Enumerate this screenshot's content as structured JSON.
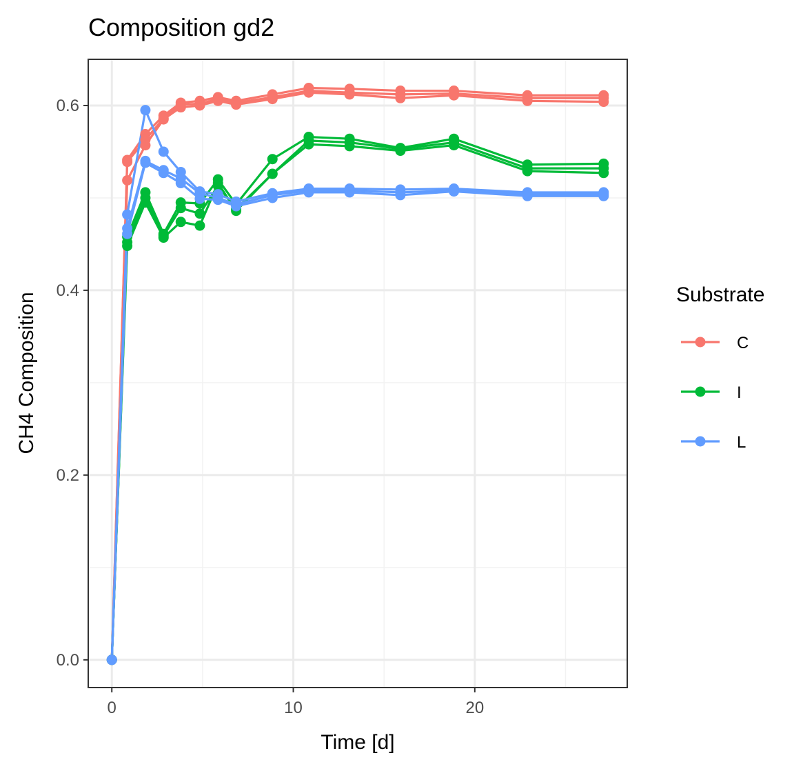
{
  "chart_data": {
    "type": "line",
    "title": "Composition gd2",
    "xlabel": "Time [d]",
    "ylabel": "CH4 Composition",
    "xlim": [
      -1.3,
      28.4
    ],
    "ylim": [
      -0.03,
      0.65
    ],
    "x_ticks": [
      0,
      10,
      20
    ],
    "x_tick_labels": [
      "0",
      "10",
      "20"
    ],
    "y_ticks": [
      0.0,
      0.2,
      0.4,
      0.6
    ],
    "y_tick_labels": [
      "0.0",
      "0.2",
      "0.4",
      "0.6"
    ],
    "grid": true,
    "legend": {
      "title": "Substrate",
      "position": "right",
      "entries": [
        {
          "label": "C",
          "color": "#F8766D"
        },
        {
          "label": "I",
          "color": "#00BA38"
        },
        {
          "label": "L",
          "color": "#619CFF"
        }
      ]
    },
    "x": [
      0,
      0.85,
      1.85,
      2.85,
      3.8,
      4.85,
      5.85,
      6.85,
      8.85,
      10.85,
      13.1,
      15.9,
      18.85,
      22.9,
      27.1
    ],
    "series": [
      {
        "name": "C",
        "color": "#F8766D",
        "values": [
          0.0,
          0.541,
          0.569,
          0.589,
          0.603,
          0.605,
          0.609,
          0.605,
          0.612,
          0.619,
          0.618,
          0.616,
          0.616,
          0.611,
          0.611
        ]
      },
      {
        "name": "C",
        "color": "#F8766D",
        "values": [
          0.0,
          0.539,
          0.563,
          0.586,
          0.601,
          0.602,
          0.607,
          0.603,
          0.609,
          0.616,
          0.614,
          0.612,
          0.613,
          0.608,
          0.608
        ]
      },
      {
        "name": "C",
        "color": "#F8766D",
        "values": [
          0.0,
          0.519,
          0.557,
          0.585,
          0.598,
          0.6,
          0.605,
          0.601,
          0.607,
          0.614,
          0.612,
          0.608,
          0.611,
          0.605,
          0.604
        ]
      },
      {
        "name": "I",
        "color": "#00BA38",
        "values": [
          0.0,
          0.458,
          0.506,
          0.461,
          0.495,
          0.494,
          0.52,
          0.493,
          0.542,
          0.566,
          0.564,
          0.554,
          0.564,
          0.536,
          0.537
        ]
      },
      {
        "name": "I",
        "color": "#00BA38",
        "values": [
          0.0,
          0.452,
          0.5,
          0.459,
          0.489,
          0.483,
          0.513,
          0.488,
          0.526,
          0.562,
          0.56,
          0.553,
          0.56,
          0.532,
          0.532
        ]
      },
      {
        "name": "I",
        "color": "#00BA38",
        "values": [
          0.0,
          0.448,
          0.495,
          0.457,
          0.474,
          0.47,
          0.516,
          0.486,
          0.526,
          0.558,
          0.556,
          0.551,
          0.557,
          0.529,
          0.527
        ]
      },
      {
        "name": "L",
        "color": "#619CFF",
        "values": [
          0.0,
          0.482,
          0.595,
          0.55,
          0.528,
          0.507,
          0.504,
          0.496,
          0.505,
          0.51,
          0.51,
          0.509,
          0.51,
          0.506,
          0.506
        ]
      },
      {
        "name": "L",
        "color": "#619CFF",
        "values": [
          0.0,
          0.467,
          0.54,
          0.53,
          0.521,
          0.505,
          0.5,
          0.493,
          0.503,
          0.508,
          0.508,
          0.506,
          0.508,
          0.504,
          0.504
        ]
      },
      {
        "name": "L",
        "color": "#619CFF",
        "values": [
          0.0,
          0.461,
          0.538,
          0.527,
          0.516,
          0.499,
          0.498,
          0.491,
          0.5,
          0.506,
          0.506,
          0.503,
          0.507,
          0.502,
          0.502
        ]
      }
    ]
  }
}
